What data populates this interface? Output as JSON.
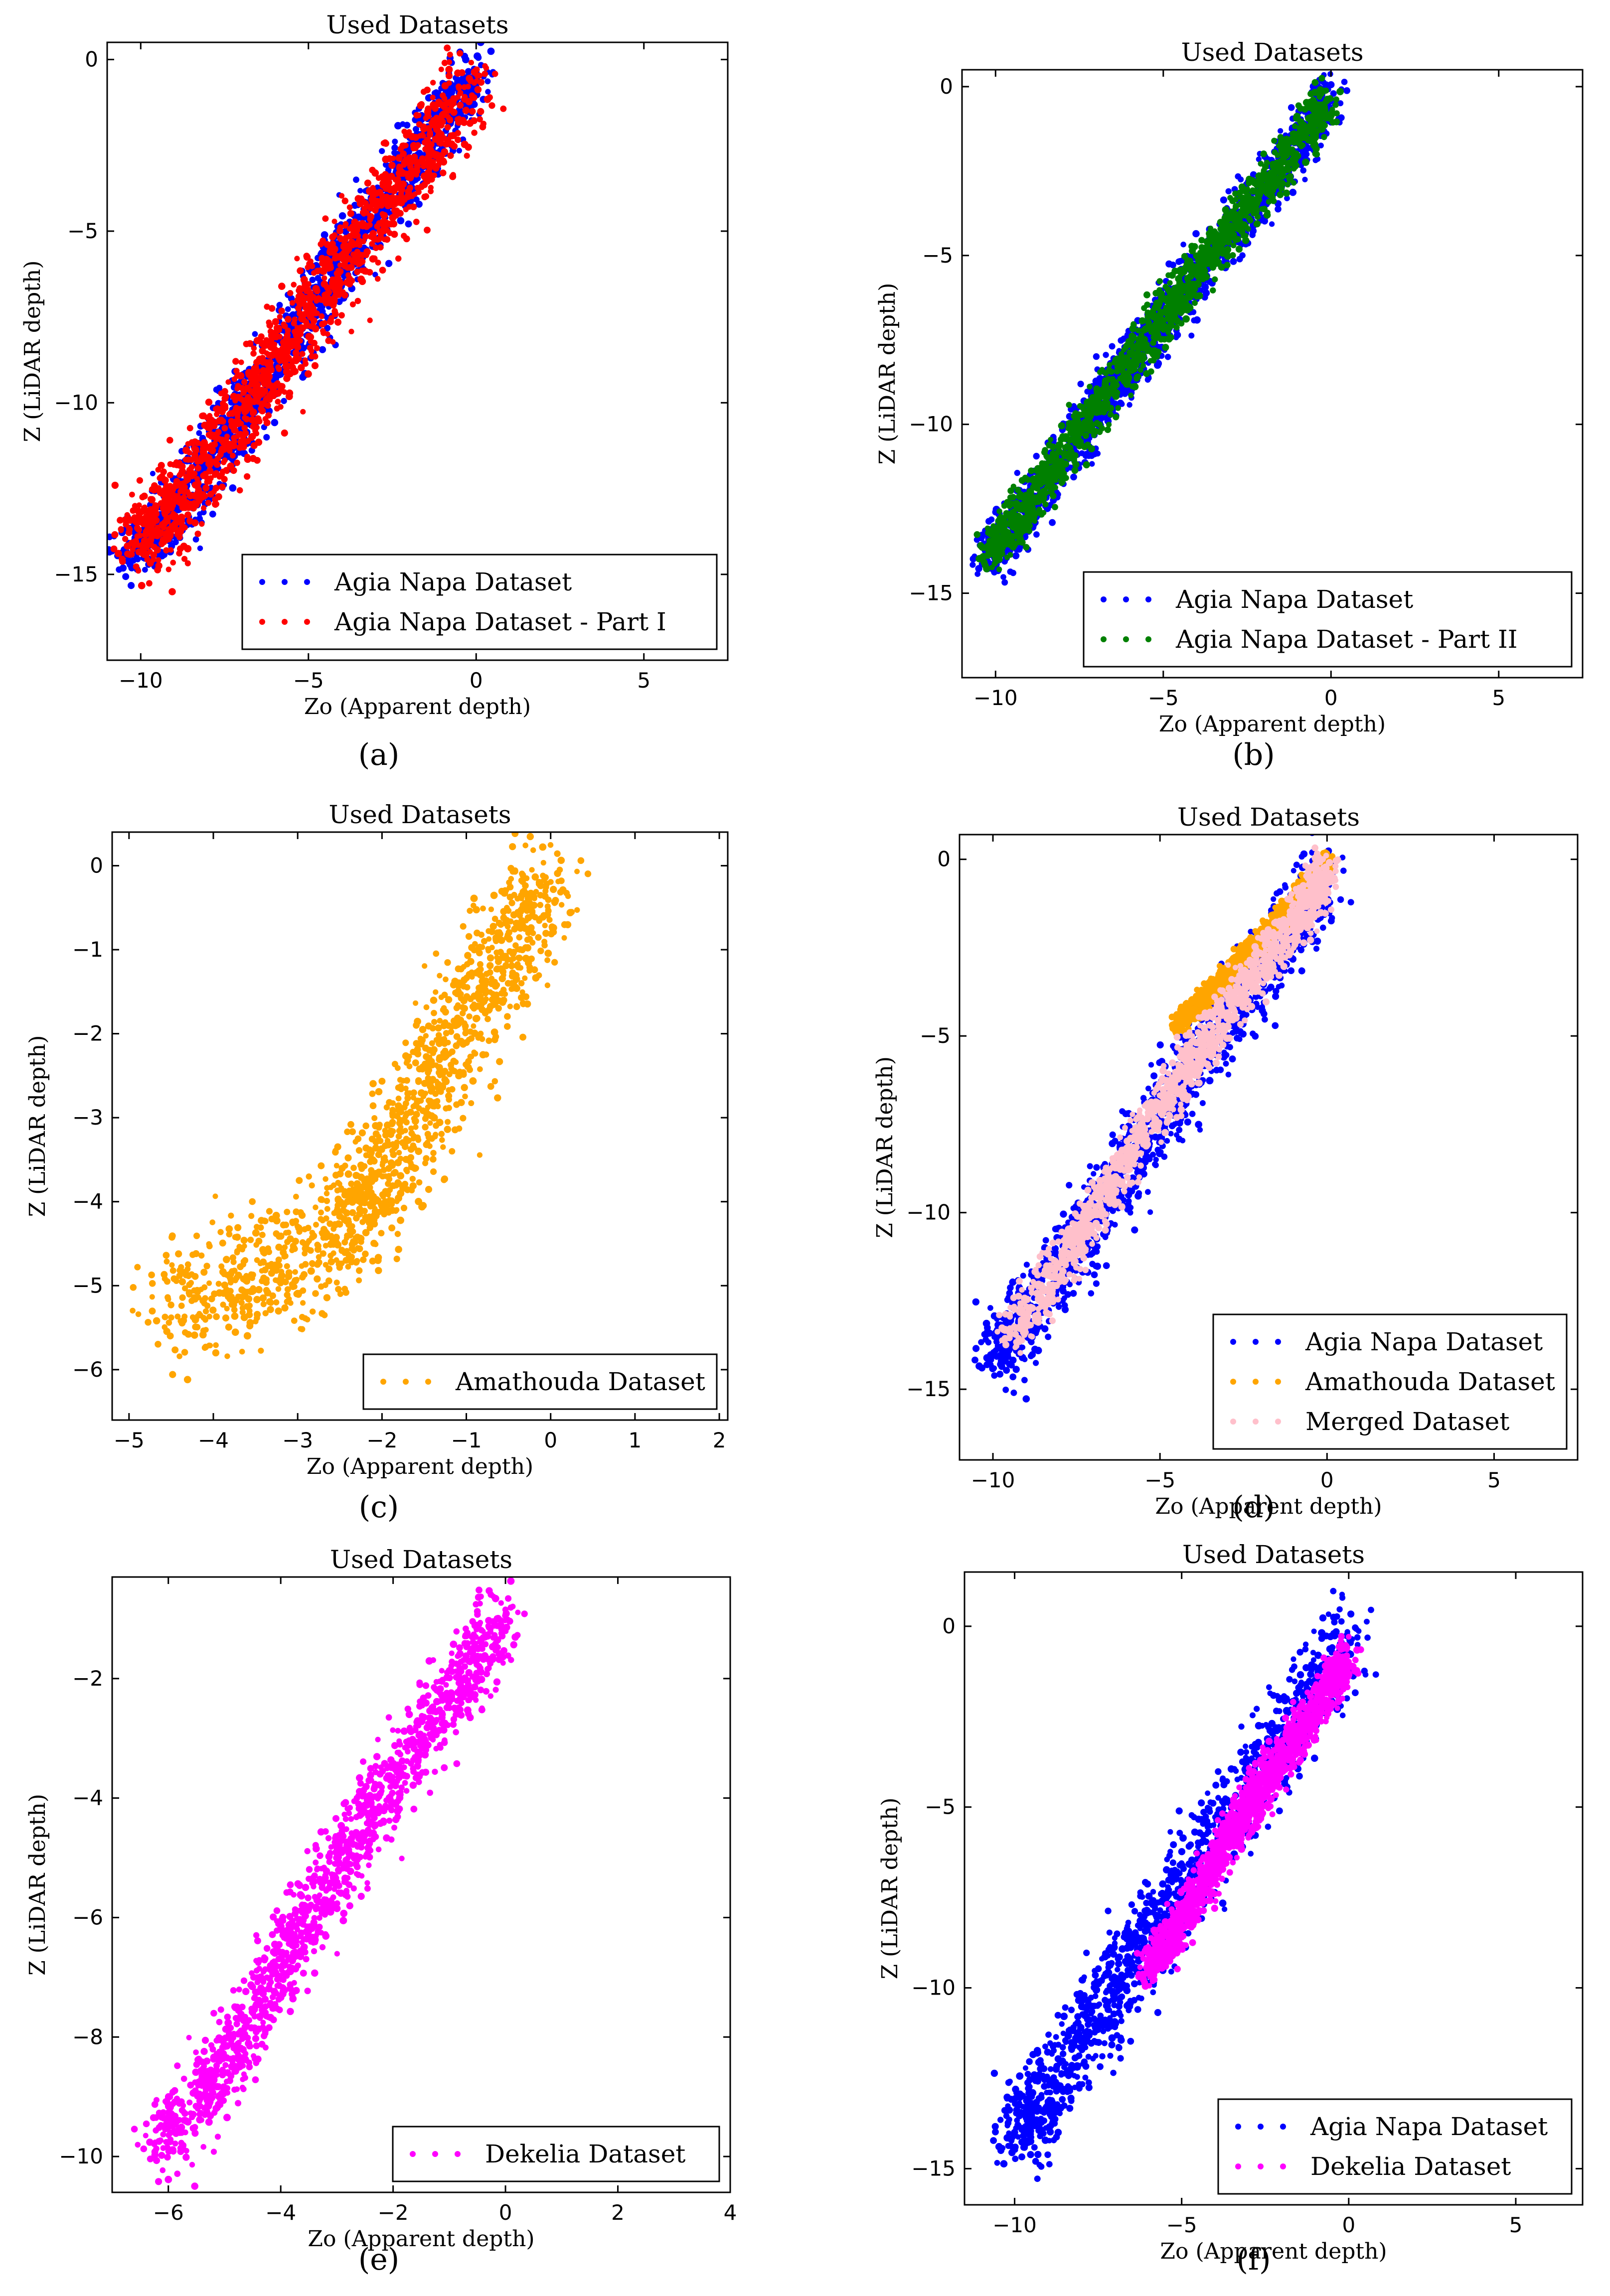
{
  "chart_data": [
    {
      "id": "a",
      "type": "scatter",
      "title": "Used Datasets",
      "xlabel": "Zo (Apparent depth)",
      "ylabel": "Z (LiDAR depth)",
      "xlim": [
        -11,
        7.5
      ],
      "ylim": [
        -17.5,
        0.5
      ],
      "xticks": [
        -10,
        -5,
        0,
        5
      ],
      "yticks": [
        0,
        -5,
        -10,
        -15
      ],
      "caption": "(a)",
      "legend": {
        "position": "lower-right"
      },
      "series": [
        {
          "name": "Agia Napa Dataset",
          "color": "#0000ff",
          "spine": [
            [
              -10.3,
              -14.3
            ],
            [
              -9,
              -13.3
            ],
            [
              -7.5,
              -11
            ],
            [
              -6,
              -9
            ],
            [
              -4.5,
              -6.5
            ],
            [
              -3,
              -4.5
            ],
            [
              -1.5,
              -2.5
            ],
            [
              0,
              -0.3
            ]
          ],
          "spread": 0.7
        },
        {
          "name": "Agia Napa Dataset - Part I",
          "color": "#ff0000",
          "spine": [
            [
              -10.2,
              -14
            ],
            [
              -9,
              -13
            ],
            [
              -7.5,
              -11
            ],
            [
              -6,
              -9
            ],
            [
              -4.5,
              -6.6
            ],
            [
              -3,
              -4.6
            ],
            [
              -1.5,
              -2.6
            ],
            [
              0,
              -0.4
            ]
          ],
          "spread": 0.85
        }
      ]
    },
    {
      "id": "b",
      "type": "scatter",
      "title": "Used Datasets",
      "xlabel": "Zo (Apparent depth)",
      "ylabel": "Z (LiDAR depth)",
      "xlim": [
        -11,
        7.5
      ],
      "ylim": [
        -17.5,
        0.5
      ],
      "xticks": [
        -10,
        -5,
        0,
        5
      ],
      "yticks": [
        0,
        -5,
        -10,
        -15
      ],
      "caption": "(b)",
      "legend": {
        "position": "lower-right"
      },
      "series": [
        {
          "name": "Agia Napa Dataset",
          "color": "#0000ff",
          "spine": [
            [
              -10.3,
              -14
            ],
            [
              -9,
              -12.5
            ],
            [
              -7.5,
              -10.3
            ],
            [
              -6,
              -8.3
            ],
            [
              -4.5,
              -6.2
            ],
            [
              -3,
              -4.3
            ],
            [
              -1.5,
              -2.4
            ],
            [
              0,
              -0.3
            ]
          ],
          "spread": 0.55
        },
        {
          "name": "Agia Napa Dataset - Part II",
          "color": "#008000",
          "spine": [
            [
              -10.2,
              -13.8
            ],
            [
              -9,
              -12.3
            ],
            [
              -7.5,
              -10.2
            ],
            [
              -6,
              -8.2
            ],
            [
              -4.5,
              -6.1
            ],
            [
              -3,
              -4.2
            ],
            [
              -1.5,
              -2.3
            ],
            [
              0,
              -0.3
            ]
          ],
          "spread": 0.45
        }
      ]
    },
    {
      "id": "c",
      "type": "scatter",
      "title": "Used Datasets",
      "xlabel": "Zo (Apparent depth)",
      "ylabel": "Z (LiDAR depth)",
      "xlim": [
        -5.2,
        2.1
      ],
      "ylim": [
        -6.6,
        0.4
      ],
      "xticks": [
        -5,
        -4,
        -3,
        -2,
        -1,
        0,
        1,
        2
      ],
      "yticks": [
        0,
        -1,
        -2,
        -3,
        -4,
        -5,
        -6
      ],
      "caption": "(c)",
      "legend": {
        "position": "lower-right"
      },
      "series": [
        {
          "name": "Amathouda Dataset",
          "color": "#ffa500",
          "spine": [
            [
              -4.5,
              -5.3
            ],
            [
              -3.5,
              -4.9
            ],
            [
              -2.5,
              -4.4
            ],
            [
              -2,
              -3.7
            ],
            [
              -1.5,
              -2.8
            ],
            [
              -1,
              -1.8
            ],
            [
              -0.5,
              -1
            ],
            [
              0,
              -0.15
            ]
          ],
          "spread": 0.5
        }
      ]
    },
    {
      "id": "d",
      "type": "scatter",
      "title": "Used Datasets",
      "xlabel": "Zo (Apparent depth)",
      "ylabel": "Z (LiDAR depth)",
      "xlim": [
        -11,
        7.5
      ],
      "ylim": [
        -17,
        0.7
      ],
      "xticks": [
        -10,
        -5,
        0,
        5
      ],
      "yticks": [
        0,
        -5,
        -10,
        -15
      ],
      "caption": "(d)",
      "legend": {
        "position": "lower-right"
      },
      "series": [
        {
          "name": "Agia Napa Dataset",
          "color": "#0000ff",
          "spine": [
            [
              -10,
              -14
            ],
            [
              -9,
              -12.8
            ],
            [
              -7.5,
              -11
            ],
            [
              -6,
              -8.8
            ],
            [
              -4.5,
              -6.5
            ],
            [
              -3,
              -4.5
            ],
            [
              -1.5,
              -2.5
            ],
            [
              0,
              -0.3
            ]
          ],
          "spread": 0.75
        },
        {
          "name": "Amathouda Dataset",
          "color": "#ffa500",
          "spine": [
            [
              -4.5,
              -4.7
            ],
            [
              -3.5,
              -3.8
            ],
            [
              -2.5,
              -2.8
            ],
            [
              -1.5,
              -1.8
            ],
            [
              -0.5,
              -0.6
            ],
            [
              0,
              -0.1
            ]
          ],
          "spread": 0.2
        },
        {
          "name": "Merged Dataset",
          "color": "#ffc0cb",
          "spine": [
            [
              -9.5,
              -13.5
            ],
            [
              -8,
              -11.5
            ],
            [
              -6.5,
              -9.3
            ],
            [
              -5,
              -7
            ],
            [
              -3.5,
              -5
            ],
            [
              -2,
              -3
            ],
            [
              -0.7,
              -1.5
            ],
            [
              0,
              -0.2
            ]
          ],
          "spread": 0.45
        }
      ]
    },
    {
      "id": "e",
      "type": "scatter",
      "title": "Used Datasets",
      "xlabel": "Zo (Apparent depth)",
      "ylabel": "Z (LiDAR depth)",
      "xlim": [
        -7,
        4
      ],
      "ylim": [
        -10.6,
        -0.3
      ],
      "xticks": [
        -6,
        -4,
        -2,
        0,
        2,
        4
      ],
      "yticks": [
        -2,
        -4,
        -6,
        -8,
        -10
      ],
      "caption": "(e)",
      "legend": {
        "position": "lower-right"
      },
      "series": [
        {
          "name": "Dekelia Dataset",
          "color": "#ff00ff",
          "spine": [
            [
              -6.2,
              -9.8
            ],
            [
              -5,
              -8.5
            ],
            [
              -4,
              -6.8
            ],
            [
              -3,
              -5.2
            ],
            [
              -2,
              -3.7
            ],
            [
              -1,
              -2.3
            ],
            [
              0,
              -0.9
            ]
          ],
          "spread": 0.45
        }
      ]
    },
    {
      "id": "f",
      "type": "scatter",
      "title": "Used Datasets",
      "xlabel": "Zo (Apparent depth)",
      "ylabel": "Z (LiDAR depth)",
      "xlim": [
        -11.5,
        7
      ],
      "ylim": [
        -16,
        1.5
      ],
      "xticks": [
        -10,
        -5,
        0,
        5
      ],
      "yticks": [
        0,
        -5,
        -10,
        -15
      ],
      "caption": "(f)",
      "legend": {
        "position": "lower-right"
      },
      "series": [
        {
          "name": "Agia Napa Dataset",
          "color": "#0000ff",
          "spine": [
            [
              -10,
              -14
            ],
            [
              -9,
              -12.8
            ],
            [
              -7.5,
              -10.8
            ],
            [
              -6,
              -8.8
            ],
            [
              -4.5,
              -6.5
            ],
            [
              -3,
              -4.5
            ],
            [
              -1.5,
              -2.4
            ],
            [
              0,
              -0.3
            ]
          ],
          "spread": 0.85
        },
        {
          "name": "Dekelia Dataset",
          "color": "#ff00ff",
          "spine": [
            [
              -6,
              -9.5
            ],
            [
              -5,
              -8.2
            ],
            [
              -4,
              -6.5
            ],
            [
              -3,
              -5
            ],
            [
              -2,
              -3.6
            ],
            [
              -1,
              -2.2
            ],
            [
              0,
              -0.8
            ]
          ],
          "spread": 0.4
        }
      ]
    }
  ]
}
